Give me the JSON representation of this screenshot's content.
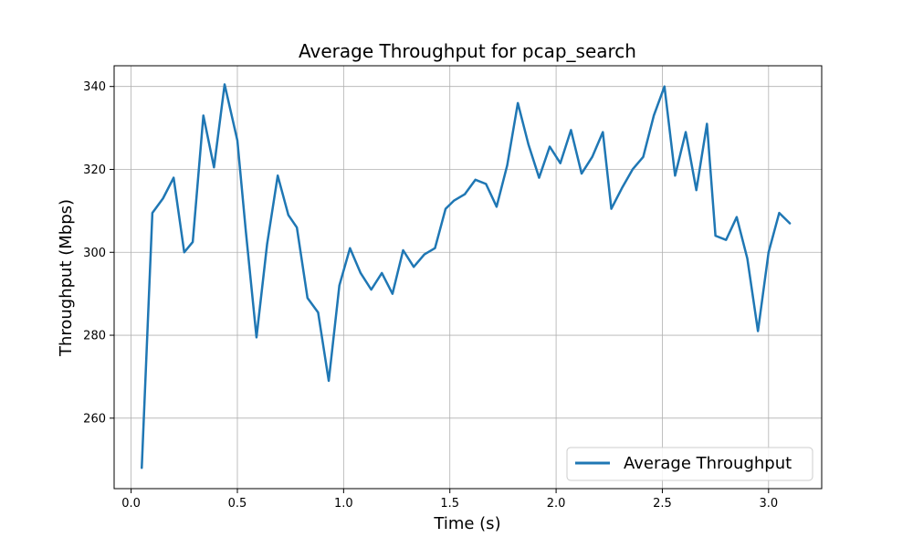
{
  "chart_data": {
    "type": "line",
    "title": "Average Throughput for pcap_search",
    "xlabel": "Time (s)",
    "ylabel": "Throughput (Mbps)",
    "xlim": [
      -0.08,
      3.25
    ],
    "ylim": [
      243,
      345
    ],
    "xticks": [
      0.0,
      0.5,
      1.0,
      1.5,
      2.0,
      2.5,
      3.0
    ],
    "xtick_labels": [
      "0.0",
      "0.5",
      "1.0",
      "1.5",
      "2.0",
      "2.5",
      "3.0"
    ],
    "yticks": [
      260,
      280,
      300,
      320,
      340
    ],
    "ytick_labels": [
      "260",
      "280",
      "300",
      "320",
      "340"
    ],
    "grid": true,
    "legend_position": "bottom-right",
    "series": [
      {
        "name": "Average Throughput",
        "color": "#1f77b4",
        "x": [
          0.05,
          0.1,
          0.15,
          0.2,
          0.25,
          0.29,
          0.34,
          0.39,
          0.44,
          0.5,
          0.54,
          0.59,
          0.64,
          0.69,
          0.74,
          0.78,
          0.83,
          0.88,
          0.93,
          0.98,
          1.03,
          1.08,
          1.13,
          1.18,
          1.23,
          1.28,
          1.33,
          1.38,
          1.43,
          1.48,
          1.52,
          1.57,
          1.62,
          1.67,
          1.72,
          1.77,
          1.82,
          1.87,
          1.92,
          1.97,
          2.02,
          2.07,
          2.12,
          2.17,
          2.22,
          2.26,
          2.31,
          2.36,
          2.41,
          2.46,
          2.51,
          2.56,
          2.61,
          2.66,
          2.71,
          2.75,
          2.8,
          2.85,
          2.9,
          2.95,
          3.0,
          3.05,
          3.1
        ],
        "y": [
          248,
          309.5,
          313,
          318,
          300,
          302.5,
          333,
          320.5,
          340.5,
          327,
          305,
          279.5,
          302,
          318.5,
          309,
          306,
          289,
          285.5,
          269,
          292,
          301,
          295,
          291,
          295,
          290,
          300.5,
          296.5,
          299.5,
          301,
          310.5,
          312.5,
          314,
          317.5,
          316.5,
          311,
          321,
          336,
          326,
          318,
          325.5,
          321.5,
          329.5,
          319,
          323,
          329,
          310.5,
          315.5,
          320,
          323,
          333,
          340,
          318.5,
          329,
          315,
          331,
          304,
          303,
          308.5,
          298.5,
          281,
          300,
          309.5,
          307
        ]
      }
    ]
  }
}
